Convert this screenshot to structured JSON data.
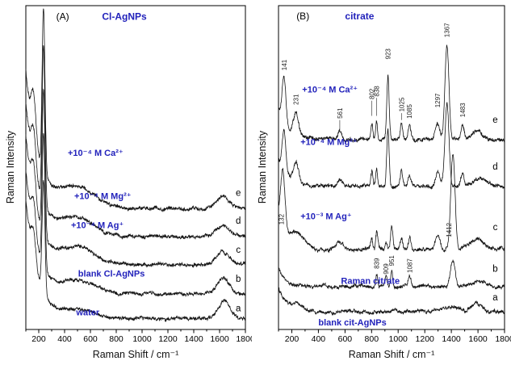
{
  "figure": {
    "background": "#ffffff",
    "trace_color": "#151515",
    "label_color": "#2222bb",
    "axis_color": "#000000"
  },
  "chart_data": [
    {
      "id": "A",
      "type": "line",
      "panel_tag": "(A)",
      "panel_tag_pos": {
        "x": 335,
        "y": 287
      },
      "title": "Cl-AgNPs",
      "title_pos": {
        "x": 690,
        "y": 287
      },
      "xlabel": "Raman Shift / cm⁻¹",
      "ylabel": "Raman Intensity",
      "xlim": [
        100,
        1800
      ],
      "ylim": [
        0,
        300
      ],
      "xticks": [
        200,
        400,
        600,
        800,
        1000,
        1200,
        1400,
        1600,
        1800
      ],
      "minor_tick_step": 100,
      "series": [
        {
          "letter": "a",
          "label": "water",
          "label_pos": {
            "x": 490,
            "y": 13
          },
          "letter_pos": {
            "x": 1745,
            "y": 17
          },
          "offset": 10,
          "noise": 1.3,
          "seed": 11,
          "rayleigh": {
            "a": 110,
            "tau": 90
          },
          "peaks": [
            [
              160,
              26,
              18
            ],
            [
              237,
              103,
              11
            ],
            [
              520,
              9,
              120
            ],
            [
              1637,
              17,
              45
            ]
          ]
        },
        {
          "letter": "b",
          "label": "blank Cl-AgNPs",
          "label_pos": {
            "x": 505,
            "y": 49
          },
          "letter_pos": {
            "x": 1745,
            "y": 44
          },
          "offset": 33,
          "noise": 1.3,
          "seed": 22,
          "rayleigh": {
            "a": 115,
            "tau": 90
          },
          "peaks": [
            [
              160,
              30,
              18
            ],
            [
              237,
              122,
              11
            ],
            [
              515,
              12,
              120
            ],
            [
              1628,
              14,
              48
            ]
          ]
        },
        {
          "letter": "c",
          "label": "+10⁻⁴ M Ag⁺",
          "label_pos": {
            "x": 450,
            "y": 94
          },
          "letter_pos": {
            "x": 1745,
            "y": 71
          },
          "offset": 60,
          "noise": 1.35,
          "seed": 33,
          "rayleigh": {
            "a": 120,
            "tau": 90
          },
          "peaks": [
            [
              160,
              33,
              18
            ],
            [
              237,
              135,
              11
            ],
            [
              505,
              15,
              128
            ],
            [
              1625,
              12,
              50
            ]
          ]
        },
        {
          "letter": "d",
          "label": "+10⁻⁴ M Mg²⁺",
          "label_pos": {
            "x": 475,
            "y": 121
          },
          "letter_pos": {
            "x": 1745,
            "y": 98
          },
          "offset": 86,
          "noise": 1.35,
          "seed": 44,
          "rayleigh": {
            "a": 124,
            "tau": 92
          },
          "peaks": [
            [
              160,
              36,
              18
            ],
            [
              237,
              146,
              11
            ],
            [
              500,
              17,
              132
            ],
            [
              1625,
              11,
              50
            ]
          ]
        },
        {
          "letter": "e",
          "label": "+10⁻⁴ M Ca²⁺",
          "label_pos": {
            "x": 425,
            "y": 161
          },
          "letter_pos": {
            "x": 1745,
            "y": 124
          },
          "offset": 112,
          "noise": 1.4,
          "seed": 55,
          "rayleigh": {
            "a": 128,
            "tau": 95
          },
          "peaks": [
            [
              160,
              40,
              18
            ],
            [
              237,
              152,
              11
            ],
            [
              495,
              19,
              138
            ],
            [
              1625,
              11,
              50
            ]
          ]
        }
      ],
      "peak_labels": []
    },
    {
      "id": "B",
      "type": "line",
      "panel_tag": "(B)",
      "panel_tag_pos": {
        "x": 235,
        "y": 225
      },
      "title": "citrate",
      "title_pos": {
        "x": 600,
        "y": 225
      },
      "xlabel": "Raman Shift / cm⁻¹",
      "ylabel": "Raman Intensity",
      "xlim": [
        100,
        1800
      ],
      "ylim": [
        0,
        235
      ],
      "xticks": [
        200,
        400,
        600,
        800,
        1000,
        1200,
        1400,
        1600,
        1800
      ],
      "minor_tick_step": 100,
      "series": [
        {
          "letter": "a",
          "label": "blank cit-AgNPs",
          "label_pos": {
            "x": 400,
            "y": 3
          },
          "letter_pos": {
            "x": 1730,
            "y": 21
          },
          "offset": 13,
          "noise": 1.0,
          "seed": 66,
          "rayleigh": {
            "a": 18,
            "tau": 60
          },
          "peaks": [
            [
              240,
              5,
              50
            ],
            [
              1390,
              3,
              70
            ],
            [
              1600,
              6,
              40
            ]
          ]
        },
        {
          "letter": "b",
          "label": "Raman citrate",
          "label_pos": {
            "x": 570,
            "y": 33
          },
          "letter_pos": {
            "x": 1730,
            "y": 42
          },
          "offset": 31,
          "noise": 1.0,
          "seed": 77,
          "rayleigh": {
            "a": 14,
            "tau": 60
          },
          "peaks": [
            [
              839,
              9,
              7
            ],
            [
              909,
              6,
              7
            ],
            [
              951,
              11,
              7
            ],
            [
              1087,
              7,
              9
            ],
            [
              1412,
              20,
              18
            ],
            [
              1600,
              4,
              50
            ]
          ]
        },
        {
          "letter": "c",
          "label": "+10⁻³ M Ag⁺",
          "label_pos": {
            "x": 265,
            "y": 80
          },
          "letter_pos": {
            "x": 1730,
            "y": 72
          },
          "offset": 58,
          "noise": 1.15,
          "seed": 88,
          "rayleigh": {
            "a": 25,
            "tau": 60
          },
          "peaks": [
            [
              132,
              42,
              16
            ],
            [
              240,
              10,
              60
            ],
            [
              560,
              5,
              25
            ],
            [
              802,
              8,
              8
            ],
            [
              839,
              14,
              8
            ],
            [
              909,
              7,
              8
            ],
            [
              951,
              17,
              9
            ],
            [
              1025,
              8,
              10
            ],
            [
              1087,
              9,
              10
            ],
            [
              1297,
              10,
              18
            ],
            [
              1412,
              70,
              16
            ],
            [
              1590,
              8,
              50
            ]
          ]
        },
        {
          "letter": "d",
          "label": "+10⁻⁴ M Mg²⁺",
          "label_pos": {
            "x": 265,
            "y": 134
          },
          "letter_pos": {
            "x": 1730,
            "y": 116
          },
          "offset": 104,
          "noise": 1.1,
          "seed": 99,
          "rayleigh": {
            "a": 20,
            "tau": 65
          },
          "peaks": [
            [
              141,
              30,
              14
            ],
            [
              231,
              14,
              20
            ],
            [
              561,
              6,
              14
            ],
            [
              802,
              11,
              7
            ],
            [
              838,
              13,
              7
            ],
            [
              923,
              42,
              9
            ],
            [
              1025,
              11,
              9
            ],
            [
              1085,
              8,
              10
            ],
            [
              1297,
              11,
              16
            ],
            [
              1367,
              60,
              15
            ],
            [
              1483,
              9,
              12
            ],
            [
              1620,
              6,
              40
            ]
          ]
        },
        {
          "letter": "e",
          "label": "+10⁻⁴ M Ca²⁺",
          "label_pos": {
            "x": 278,
            "y": 172
          },
          "letter_pos": {
            "x": 1730,
            "y": 150
          },
          "offset": 138,
          "noise": 1.1,
          "seed": 111,
          "rayleigh": {
            "a": 22,
            "tau": 65
          },
          "peaks": [
            [
              141,
              34,
              14
            ],
            [
              231,
              16,
              20
            ],
            [
              561,
              7,
              14
            ],
            [
              802,
              12,
              7
            ],
            [
              838,
              14,
              7
            ],
            [
              923,
              46,
              9
            ],
            [
              1025,
              12,
              9
            ],
            [
              1085,
              9,
              10
            ],
            [
              1297,
              12,
              16
            ],
            [
              1367,
              68,
              15
            ],
            [
              1483,
              10,
              12
            ],
            [
              1600,
              6,
              40
            ]
          ]
        }
      ],
      "peak_labels": [
        {
          "text": "141",
          "x": 141,
          "y": 188
        },
        {
          "text": "231",
          "x": 231,
          "y": 163
        },
        {
          "text": "561",
          "x": 561,
          "y": 153,
          "lead": 8
        },
        {
          "text": "802",
          "x": 802,
          "y": 167,
          "lead": 11
        },
        {
          "text": "838",
          "x": 838,
          "y": 169,
          "lead": 13
        },
        {
          "text": "923",
          "x": 923,
          "y": 196
        },
        {
          "text": "1025",
          "x": 1025,
          "y": 158,
          "lead": 5
        },
        {
          "text": "1085",
          "x": 1085,
          "y": 153
        },
        {
          "text": "1297",
          "x": 1297,
          "y": 161
        },
        {
          "text": "1367",
          "x": 1367,
          "y": 212
        },
        {
          "text": "1483",
          "x": 1483,
          "y": 154
        },
        {
          "text": "132",
          "x": 120,
          "y": 76
        },
        {
          "text": "839",
          "x": 839,
          "y": 44
        },
        {
          "text": "909",
          "x": 909,
          "y": 40
        },
        {
          "text": "951",
          "x": 951,
          "y": 46
        },
        {
          "text": "1087",
          "x": 1087,
          "y": 41
        },
        {
          "text": "1412",
          "x": 1382,
          "y": 67
        }
      ]
    }
  ]
}
